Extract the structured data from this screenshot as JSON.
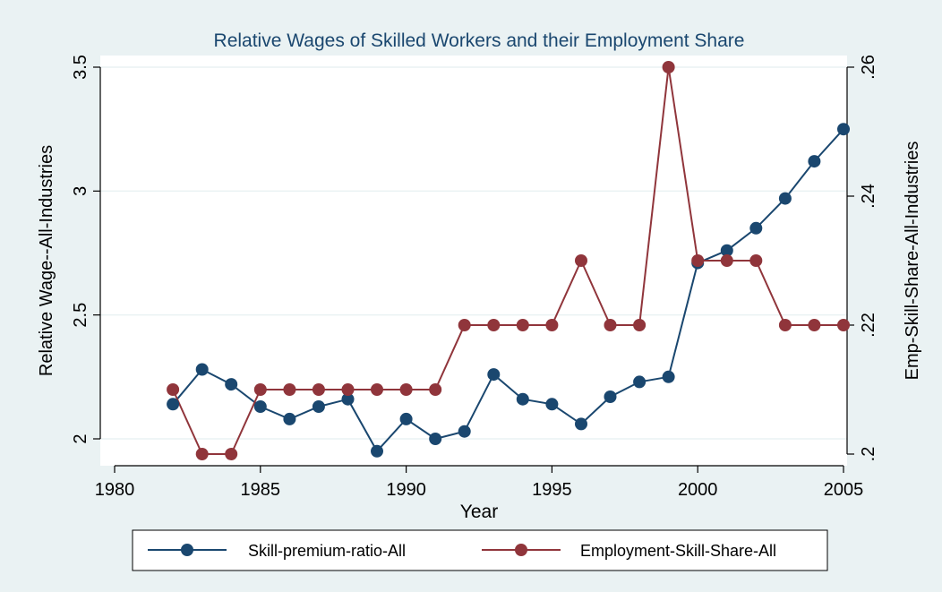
{
  "chart_data": {
    "type": "line",
    "title": "Relative Wages of Skilled Workers and their Employment Share",
    "xlabel": "Year",
    "ylabel_left": "Relative Wage--All-Industries",
    "ylabel_right": "Emp-Skill-Share-All-Industries",
    "xlim": [
      1980,
      2005
    ],
    "ylim_left": [
      2,
      3.5
    ],
    "ylim_right": [
      0.2,
      0.26
    ],
    "x_ticks": [
      1980,
      1985,
      1990,
      1995,
      2000,
      2005
    ],
    "x_tick_labels": [
      "1980",
      "1985",
      "1990",
      "1995",
      "2000",
      "2005"
    ],
    "y_left_ticks": [
      2,
      2.5,
      3,
      3.5
    ],
    "y_left_tick_labels": [
      "2",
      "2.5",
      "3",
      "3.5"
    ],
    "y_right_ticks": [
      0.2,
      0.22,
      0.24,
      0.26
    ],
    "y_right_tick_labels": [
      ".2",
      ".22",
      ".24",
      ".26"
    ],
    "grid": "horizontal",
    "legend_position": "bottom",
    "x": [
      1982,
      1983,
      1984,
      1985,
      1986,
      1987,
      1988,
      1989,
      1990,
      1991,
      1992,
      1993,
      1994,
      1995,
      1996,
      1997,
      1998,
      1999,
      2000,
      2001,
      2002,
      2003,
      2004,
      2005
    ],
    "series": [
      {
        "name": "Skill-premium-ratio-All",
        "axis": "left",
        "color": "#1a476f",
        "values": [
          2.14,
          2.28,
          2.22,
          2.13,
          2.08,
          2.13,
          2.16,
          1.95,
          2.08,
          2.0,
          2.03,
          2.26,
          2.16,
          2.14,
          2.06,
          2.17,
          2.23,
          2.25,
          2.71,
          2.76,
          2.85,
          2.97,
          3.12,
          3.25
        ]
      },
      {
        "name": "Employment-Skill-Share-All",
        "axis": "right",
        "color": "#90353b",
        "values": [
          0.21,
          0.2,
          0.2,
          0.21,
          0.21,
          0.21,
          0.21,
          0.21,
          0.21,
          0.21,
          0.22,
          0.22,
          0.22,
          0.22,
          0.23,
          0.22,
          0.22,
          0.26,
          0.23,
          0.23,
          0.23,
          0.22,
          0.22,
          0.22
        ]
      }
    ]
  }
}
